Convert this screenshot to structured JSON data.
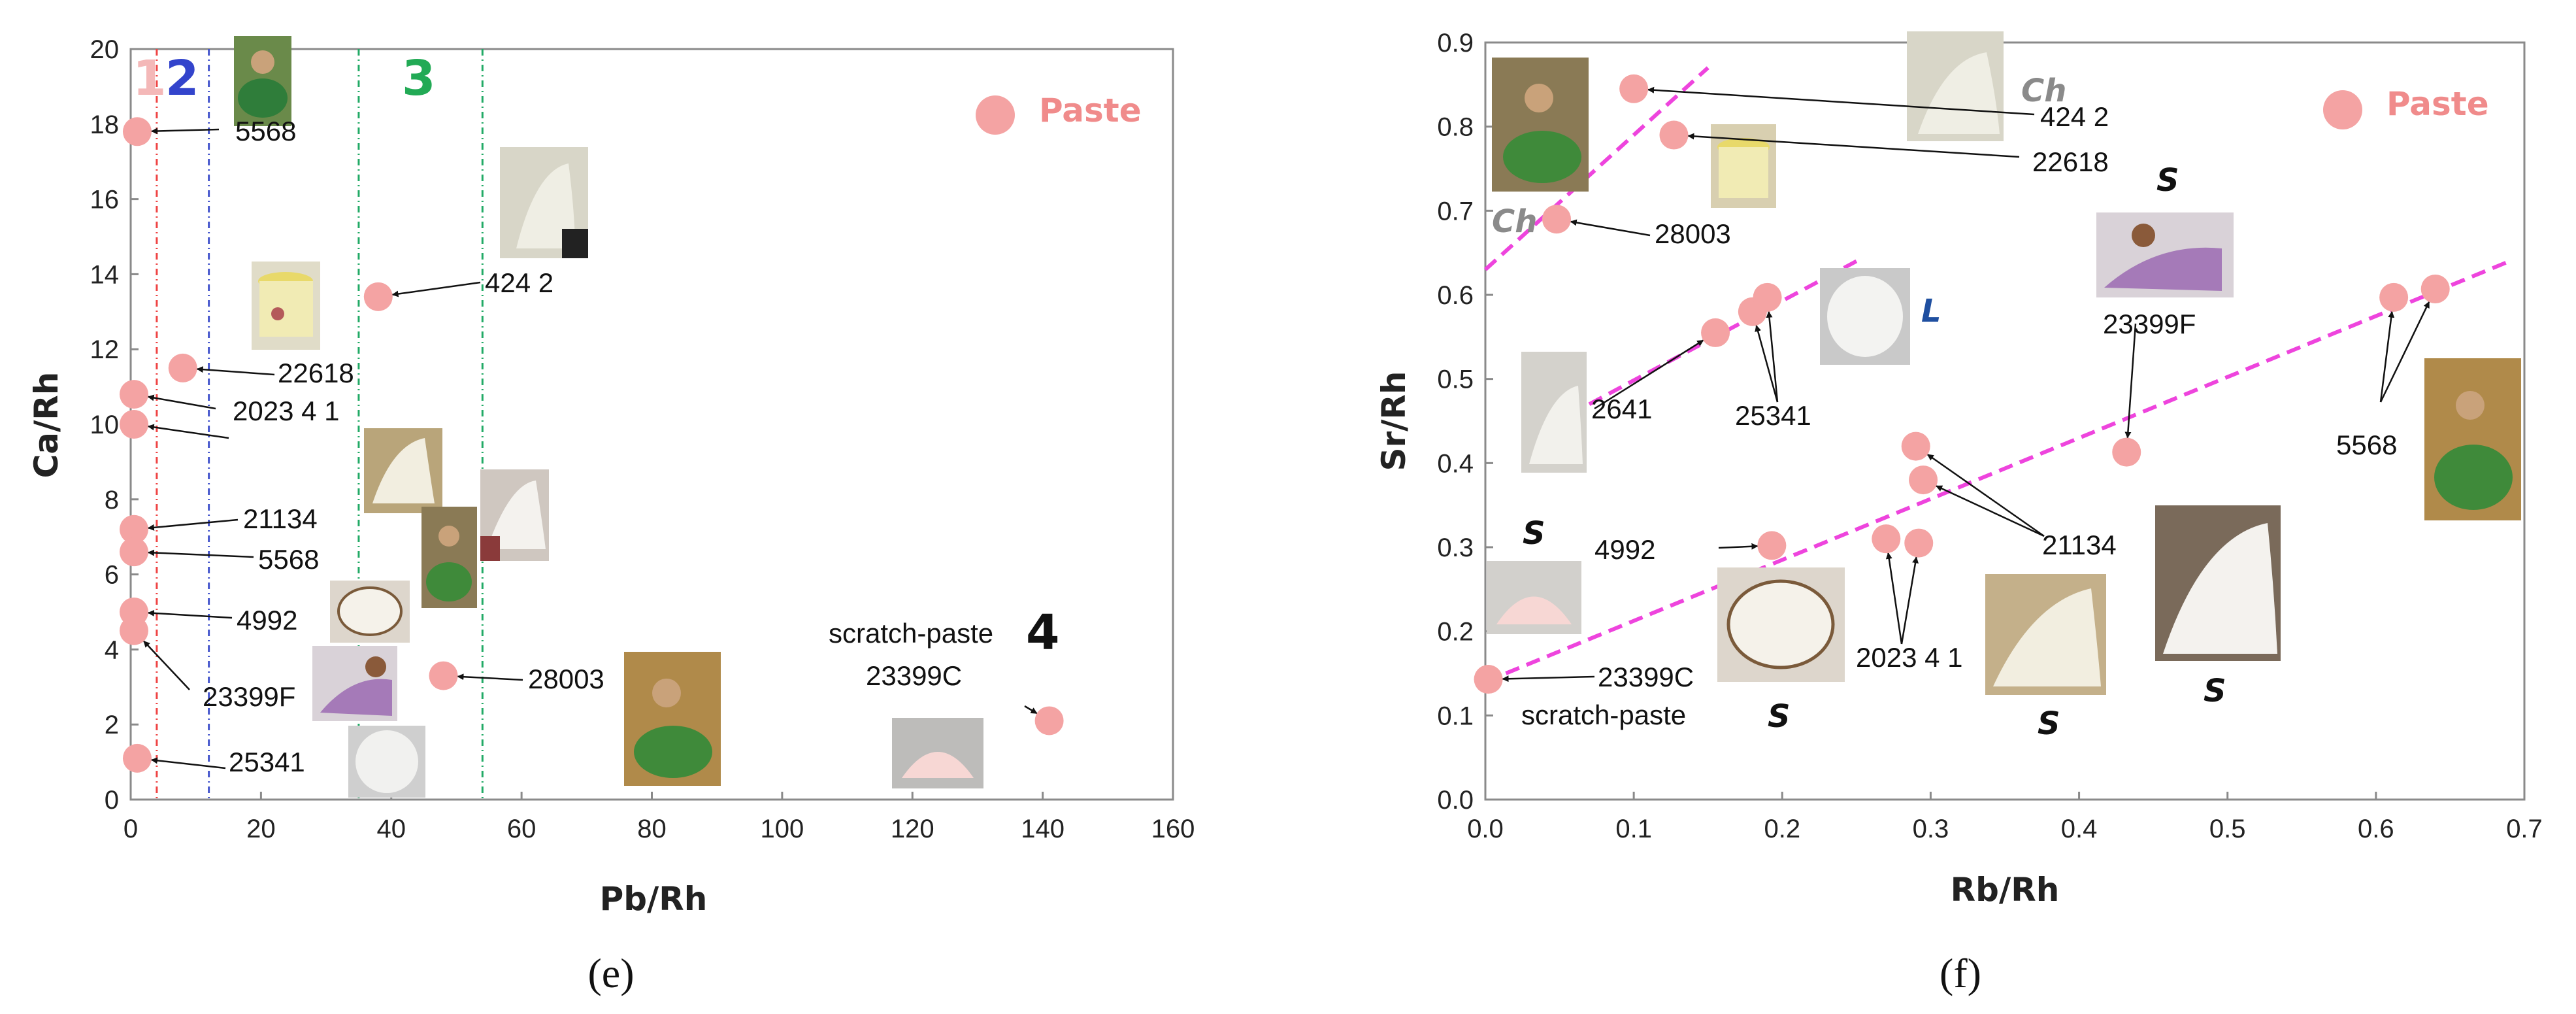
{
  "colors": {
    "point": "#f4a3a3",
    "legend_text": "#f08b8b",
    "frame": "#8a8a8a",
    "line_1": "#ef4444",
    "line_2": "#4455cc",
    "line_3": "#22aa66",
    "trend": "#ee44dd",
    "zone_1": "#f4b8b8",
    "zone_2": "#3344cc",
    "zone_3": "#22aa55",
    "cat_ch": "#8a8a8a",
    "cat_s": "#111111",
    "cat_l": "#1f4fa0"
  },
  "chart_data": [
    {
      "type": "scatter",
      "panel": "(e)",
      "xlabel": "Pb/Rh",
      "ylabel": "Ca/Rh",
      "xlim": [
        0,
        160
      ],
      "ylim": [
        0,
        20
      ],
      "xticks": [
        "0",
        "20",
        "40",
        "60",
        "80",
        "100",
        "120",
        "140",
        "160"
      ],
      "yticks": [
        "0",
        "2",
        "4",
        "6",
        "8",
        "10",
        "12",
        "14",
        "16",
        "18",
        "20"
      ],
      "legend": "Paste",
      "legend_position": "top-right",
      "grid": false,
      "zone_lines": [
        4,
        12,
        35,
        54
      ],
      "zone_labels": [
        "1",
        "2",
        "3",
        "4"
      ],
      "zone_4_note": "scratch-paste",
      "points": [
        {
          "label": "5568",
          "x": 1,
          "y": 17.8
        },
        {
          "label": "424 2",
          "x": 38,
          "y": 13.4
        },
        {
          "label": "22618",
          "x": 8,
          "y": 11.5
        },
        {
          "label": "2023 4 1",
          "x": 0.5,
          "y": 10.0
        },
        {
          "label": "21134",
          "x": 0.5,
          "y": 7.2
        },
        {
          "label": "5568",
          "x": 0.5,
          "y": 6.6
        },
        {
          "label": "4992",
          "x": 0.5,
          "y": 5.0
        },
        {
          "label": "23399F",
          "x": 0.5,
          "y": 4.5
        },
        {
          "label": "28003",
          "x": 48,
          "y": 3.3
        },
        {
          "label": "25341",
          "x": 1,
          "y": 1.1
        },
        {
          "label": "23399C",
          "x": 141,
          "y": 2.1
        },
        {
          "label": "",
          "x": 0.5,
          "y": 10.8
        }
      ]
    },
    {
      "type": "scatter",
      "panel": "(f)",
      "xlabel": "Rb/Rh",
      "ylabel": "Sr/Rh",
      "xlim": [
        0,
        0.7
      ],
      "ylim": [
        0,
        0.9
      ],
      "xticks": [
        "0.0",
        "0.1",
        "0.2",
        "0.3",
        "0.4",
        "0.5",
        "0.6",
        "0.7"
      ],
      "yticks": [
        "0.0",
        "0.1",
        "0.2",
        "0.3",
        "0.4",
        "0.5",
        "0.6",
        "0.7",
        "0.8",
        "0.9"
      ],
      "legend": "Paste",
      "legend_position": "top-right",
      "grid": false,
      "trendlines": [
        {
          "x": [
            0.0,
            0.15
          ],
          "y": [
            0.63,
            0.87
          ]
        },
        {
          "x": [
            0.07,
            0.25
          ],
          "y": [
            0.47,
            0.64
          ]
        },
        {
          "x": [
            0.0,
            0.69
          ],
          "y": [
            0.14,
            0.64
          ]
        }
      ],
      "categories": [
        "Ch",
        "S",
        "L"
      ],
      "scratch_note": "scratch-paste",
      "points": [
        {
          "label": "424 2",
          "x": 0.1,
          "y": 0.845
        },
        {
          "label": "22618",
          "x": 0.127,
          "y": 0.79
        },
        {
          "label": "28003",
          "x": 0.048,
          "y": 0.69
        },
        {
          "label": "2641",
          "x": 0.155,
          "y": 0.555
        },
        {
          "label": "25341",
          "x": 0.18,
          "y": 0.58
        },
        {
          "label": "25341",
          "x": 0.19,
          "y": 0.597
        },
        {
          "label": "23399F",
          "x": 0.432,
          "y": 0.413
        },
        {
          "label": "5568",
          "x": 0.612,
          "y": 0.597
        },
        {
          "label": "5568",
          "x": 0.64,
          "y": 0.607
        },
        {
          "label": "21134",
          "x": 0.29,
          "y": 0.42
        },
        {
          "label": "21134",
          "x": 0.295,
          "y": 0.38
        },
        {
          "label": "4992",
          "x": 0.193,
          "y": 0.302
        },
        {
          "label": "2023 4 1",
          "x": 0.27,
          "y": 0.31
        },
        {
          "label": "2023 4 1",
          "x": 0.292,
          "y": 0.305
        },
        {
          "label": "23399C",
          "x": 0.002,
          "y": 0.143
        }
      ]
    }
  ]
}
